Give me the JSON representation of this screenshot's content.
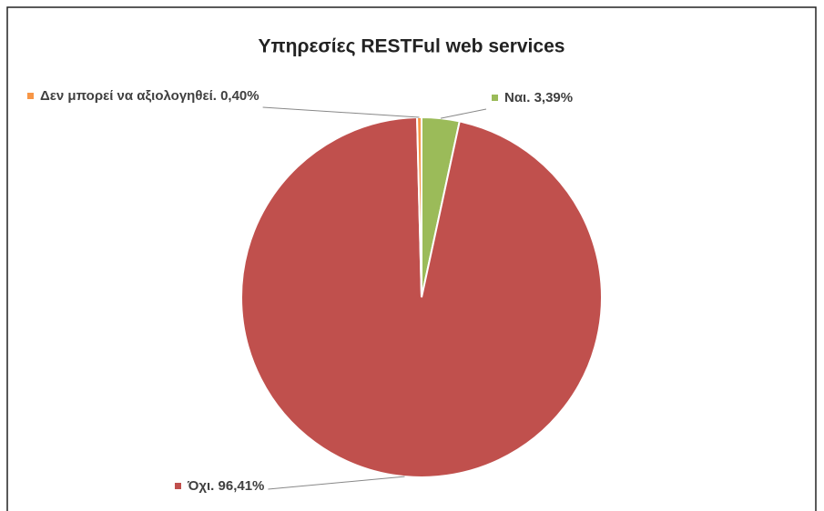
{
  "chart_data": {
    "type": "pie",
    "title": "Υπηρεσίες RESTFul web services",
    "categories": [
      "Ναι.",
      "Όχι.",
      "Δεν μπορεί να αξιολογηθεί."
    ],
    "values": [
      3.39,
      96.41,
      0.4
    ],
    "value_labels": [
      "3,39%",
      "96,41%",
      "0,40%"
    ],
    "colors": [
      "#9bbb59",
      "#c0504d",
      "#f79646"
    ]
  }
}
